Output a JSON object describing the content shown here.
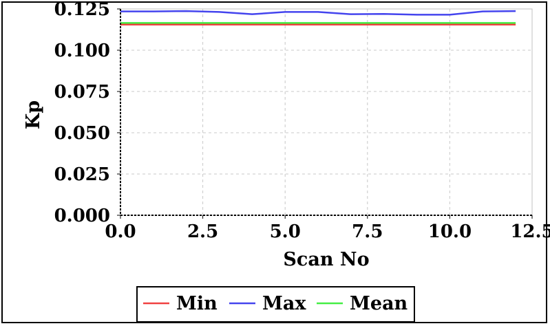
{
  "chart_data": {
    "type": "line",
    "xlabel": "Scan No",
    "ylabel": "Kp",
    "xlim": [
      0,
      12.5
    ],
    "ylim": [
      0,
      0.125
    ],
    "x_ticks": [
      "0.0",
      "2.5",
      "5.0",
      "7.5",
      "10.0",
      "12.5"
    ],
    "y_ticks": [
      "0.000",
      "0.025",
      "0.050",
      "0.075",
      "0.100",
      "0.125"
    ],
    "grid": true,
    "legend_position": "bottom",
    "x": [
      0,
      1,
      2,
      3,
      4,
      5,
      6,
      7,
      8,
      9,
      10,
      11,
      12
    ],
    "series": [
      {
        "name": "Min",
        "color": "#f04040",
        "values": [
          0.1155,
          0.1155,
          0.1155,
          0.1155,
          0.1155,
          0.1155,
          0.1155,
          0.1155,
          0.1155,
          0.1155,
          0.1155,
          0.1155,
          0.1155
        ]
      },
      {
        "name": "Max",
        "color": "#4444ee",
        "values": [
          0.1235,
          0.1235,
          0.1237,
          0.1232,
          0.1218,
          0.1232,
          0.1232,
          0.1218,
          0.122,
          0.1215,
          0.1215,
          0.1235,
          0.1237
        ]
      },
      {
        "name": "Mean",
        "color": "#44ee44",
        "values": [
          0.1165,
          0.1165,
          0.1165,
          0.1165,
          0.1165,
          0.1165,
          0.1165,
          0.1165,
          0.1165,
          0.1165,
          0.1165,
          0.1165,
          0.1165
        ]
      }
    ]
  }
}
